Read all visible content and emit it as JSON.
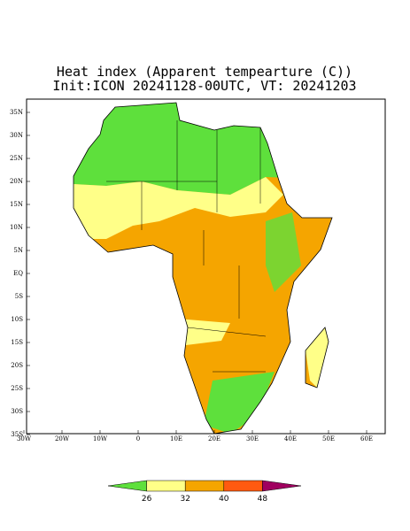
{
  "title": {
    "line1": "Heat index (Apparent tempearture (C))",
    "line2": "Init:ICON 20241128-00UTC, VT: 20241203"
  },
  "lat_labels": [
    "35N",
    "30N",
    "25N",
    "20N",
    "15N",
    "10N",
    "5N",
    "EQ",
    "5S",
    "10S",
    "15S",
    "20S",
    "25S",
    "30S",
    "35S"
  ],
  "lon_labels": [
    "30W",
    "20W",
    "10W",
    "0",
    "10E",
    "20E",
    "30E",
    "40E",
    "50E",
    "60E"
  ],
  "colorbar": {
    "levels": [
      26,
      32,
      40,
      48
    ],
    "colors": [
      "#5ee03c",
      "#ffff88",
      "#f5a500",
      "#ff5a10",
      "#a00060"
    ]
  }
}
